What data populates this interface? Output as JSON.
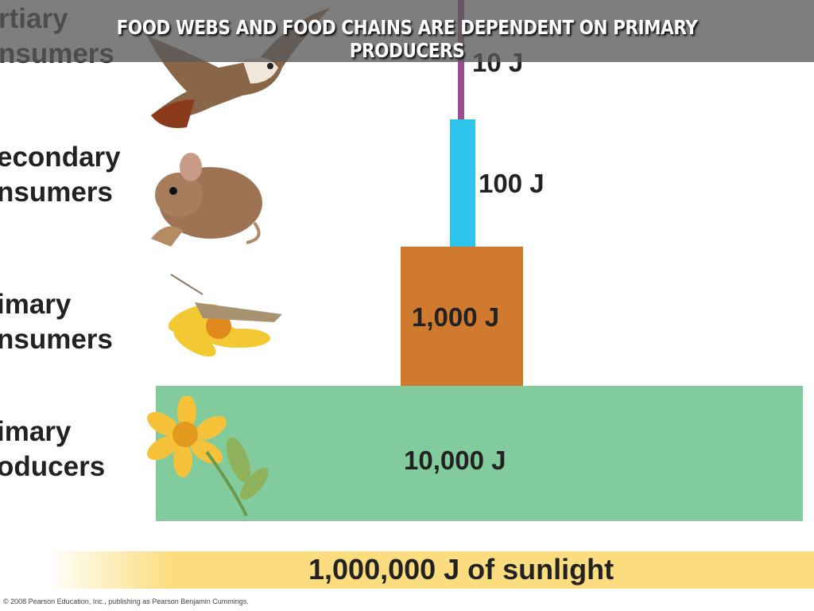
{
  "title": "FOOD WEBS AND FOOD CHAINS ARE DEPENDENT ON PRIMARY PRODUCERS",
  "levels": [
    {
      "label_line1": "rtiary",
      "label_line2": "nsumers",
      "energy": "10 J",
      "color": "#9b4f8e",
      "icon": "hawk-icon"
    },
    {
      "label_line1": "econdary",
      "label_line2": "nsumers",
      "energy": "100 J",
      "color": "#2ec4ec",
      "icon": "mouse-icon"
    },
    {
      "label_line1": "imary",
      "label_line2": "nsumers",
      "energy": "1,000 J",
      "color": "#cf7a2e",
      "icon": "grasshopper-on-flower-icon"
    },
    {
      "label_line1": "imary",
      "label_line2": "oducers",
      "energy": "10,000 J",
      "color": "#82cb9c",
      "icon": "flower-icon"
    }
  ],
  "sunlight": {
    "label": "1,000,000 J of sunlight",
    "color": "#fbdd80"
  },
  "copyright": "© 2008 Pearson Education, Inc., publishing as Pearson Benjamin Cummings."
}
